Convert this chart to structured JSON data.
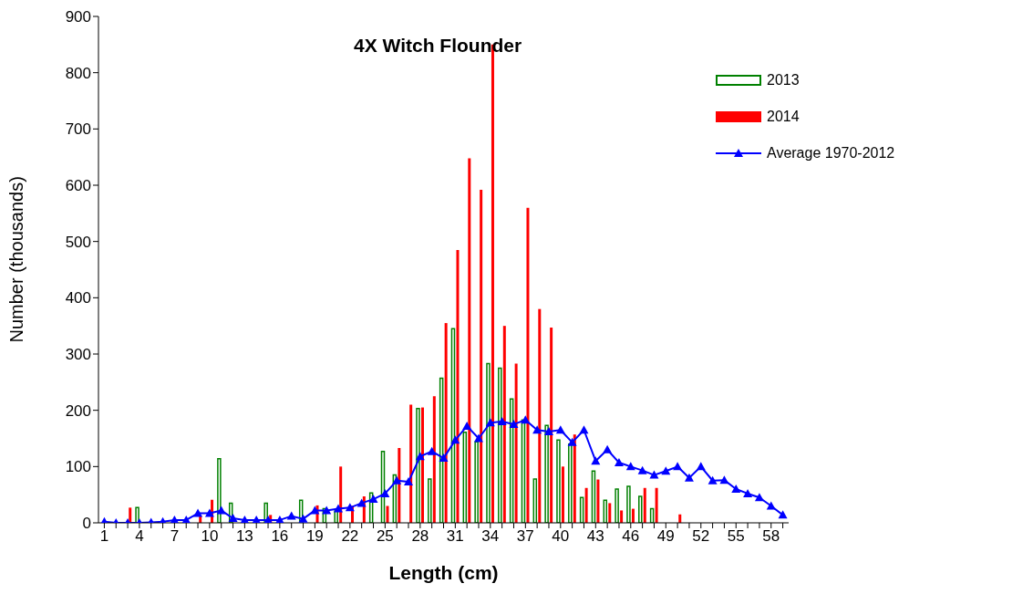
{
  "chart_data": {
    "type": "bar",
    "title": "4X Witch Flounder",
    "xlabel": "Length (cm)",
    "ylabel": "Number (thousands)",
    "categories": [
      "1",
      null,
      null,
      "4",
      null,
      null,
      "7",
      null,
      null,
      "10",
      null,
      null,
      "13",
      null,
      null,
      "16",
      null,
      null,
      "19",
      null,
      null,
      "22",
      null,
      null,
      "25",
      null,
      null,
      "28",
      null,
      null,
      "31",
      null,
      null,
      "34",
      null,
      null,
      "37",
      null,
      null,
      "40",
      null,
      null,
      "43",
      null,
      null,
      "46",
      null,
      null,
      "49",
      null,
      null,
      "52",
      null,
      null,
      "55",
      null,
      null,
      "58",
      null
    ],
    "series": [
      {
        "name": "2013",
        "color": "#008000",
        "values": [
          0,
          0,
          0,
          27,
          0,
          0,
          0,
          0,
          0,
          0,
          114,
          35,
          0,
          0,
          35,
          0,
          0,
          40,
          0,
          25,
          21,
          0,
          0,
          53,
          127,
          85,
          0,
          203,
          78,
          257,
          345,
          161,
          144,
          283,
          275,
          220,
          183,
          78,
          173,
          147,
          140,
          45,
          92,
          40,
          60,
          65,
          47,
          25,
          0,
          0,
          0,
          0,
          0,
          0,
          0,
          0,
          0,
          0,
          0
        ]
      },
      {
        "name": "2014",
        "color": "#ff0000",
        "values": [
          0,
          0,
          27,
          0,
          0,
          0,
          0,
          0,
          13,
          41,
          0,
          0,
          0,
          0,
          14,
          0,
          0,
          0,
          31,
          0,
          100,
          30,
          47,
          0,
          30,
          133,
          210,
          205,
          225,
          355,
          485,
          648,
          592,
          850,
          350,
          283,
          560,
          380,
          347,
          100,
          157,
          62,
          77,
          35,
          22,
          25,
          62,
          62,
          0,
          15,
          0,
          0,
          0,
          0,
          0,
          0,
          0,
          0,
          0
        ]
      },
      {
        "name": "Average 1970-2012",
        "type": "line",
        "color": "#0000ff",
        "marker": "triangle",
        "values": [
          2,
          0,
          0,
          0,
          1,
          2,
          5,
          5,
          17,
          17,
          22,
          8,
          5,
          5,
          5,
          5,
          12,
          7,
          22,
          22,
          25,
          27,
          35,
          42,
          52,
          75,
          73,
          118,
          127,
          115,
          147,
          172,
          150,
          178,
          180,
          175,
          183,
          165,
          162,
          165,
          143,
          165,
          110,
          130,
          107,
          100,
          93,
          85,
          92,
          100,
          80,
          100,
          75,
          76,
          60,
          52,
          45,
          30,
          14
        ]
      }
    ],
    "ylim": [
      0,
      900
    ],
    "yticks": [
      0,
      100,
      200,
      300,
      400,
      500,
      600,
      700,
      800,
      900
    ],
    "grid": false,
    "legend": "top right"
  }
}
